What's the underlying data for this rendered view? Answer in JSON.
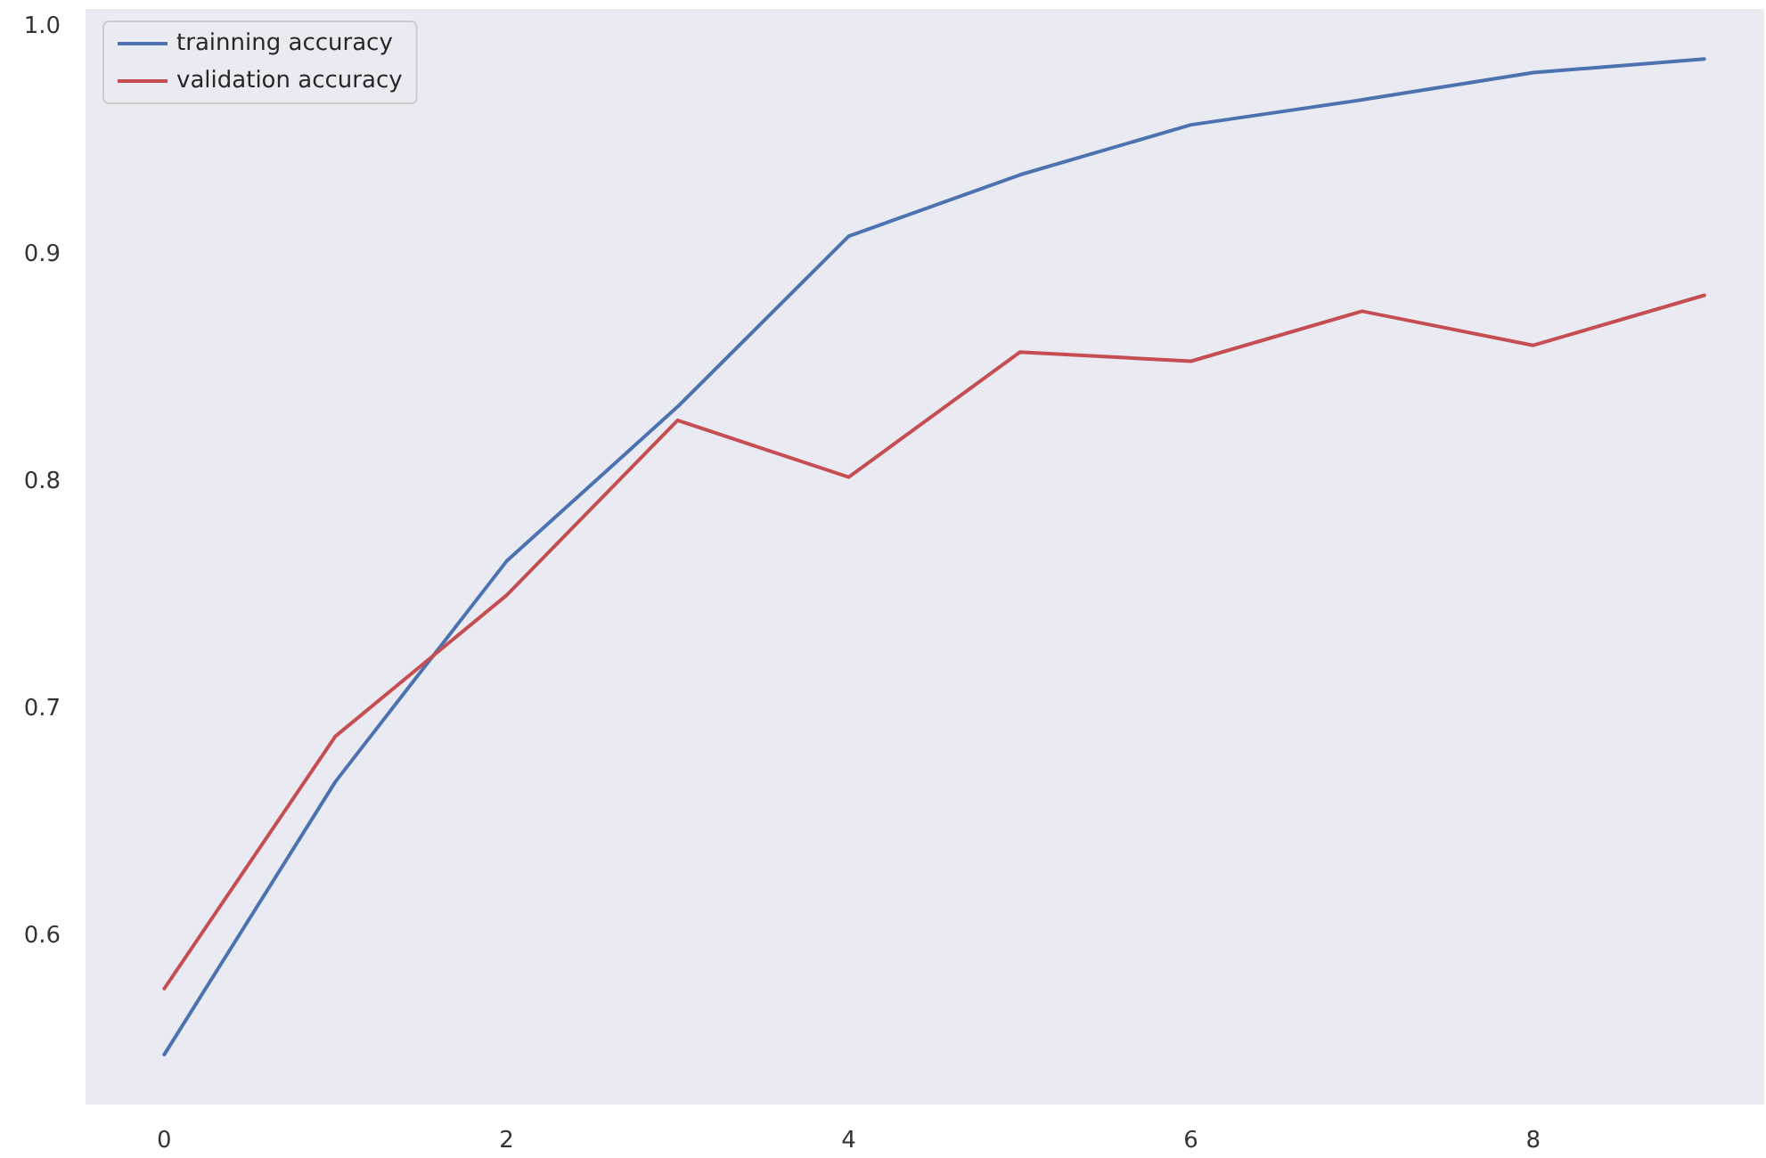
{
  "chart_data": {
    "type": "line",
    "x": [
      0,
      1,
      2,
      3,
      4,
      5,
      6,
      7,
      8,
      9
    ],
    "series": [
      {
        "name": "trainning accuracy",
        "color": "#4c72b0",
        "values": [
          0.548,
          0.668,
          0.765,
          0.833,
          0.908,
          0.935,
          0.957,
          0.968,
          0.98,
          0.986
        ]
      },
      {
        "name": "validation accuracy",
        "color": "#c44e52",
        "values": [
          0.577,
          0.688,
          0.75,
          0.827,
          0.802,
          0.857,
          0.853,
          0.875,
          0.86,
          0.882
        ]
      }
    ],
    "xlim": [
      -0.46,
      9.35
    ],
    "xticks": [
      0,
      2,
      4,
      6,
      8
    ],
    "ylim": [
      0.526,
      1.008
    ],
    "yticks": [
      0.6,
      0.7,
      0.8,
      0.9,
      {
        "value": 1,
        "label": "1.0"
      }
    ],
    "grid": false,
    "legend": "top left",
    "marker": "none",
    "line_style": "solid"
  }
}
